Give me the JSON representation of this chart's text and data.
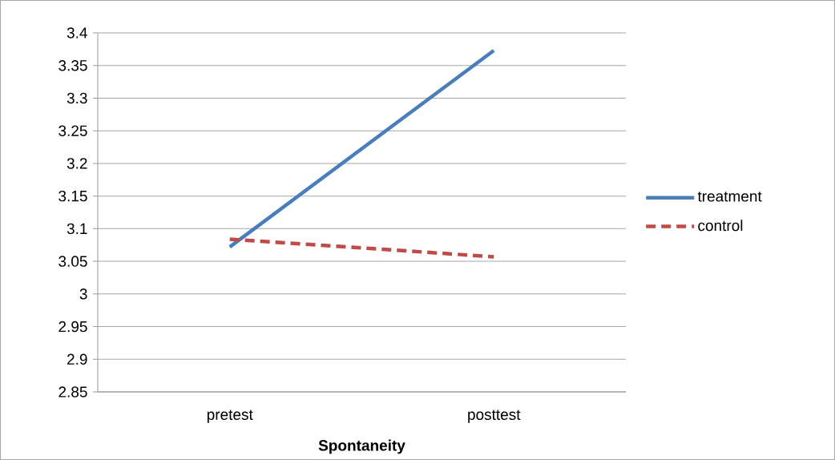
{
  "chart_data": {
    "type": "line",
    "xlabel": "Spontaneity",
    "categories": [
      "pretest",
      "posttest"
    ],
    "series": [
      {
        "name": "treatment",
        "color": "#4a7ebb",
        "line_style": "solid",
        "values": [
          3.072,
          3.373
        ]
      },
      {
        "name": "control",
        "color": "#be4b48",
        "line_style": "dashed",
        "values": [
          3.084,
          3.057
        ]
      }
    ],
    "ylim": [
      2.85,
      3.4
    ],
    "yticks": [
      2.85,
      2.9,
      2.95,
      3,
      3.05,
      3.1,
      3.15,
      3.2,
      3.25,
      3.3,
      3.35,
      3.4
    ],
    "grid": "y",
    "legend": "right"
  }
}
